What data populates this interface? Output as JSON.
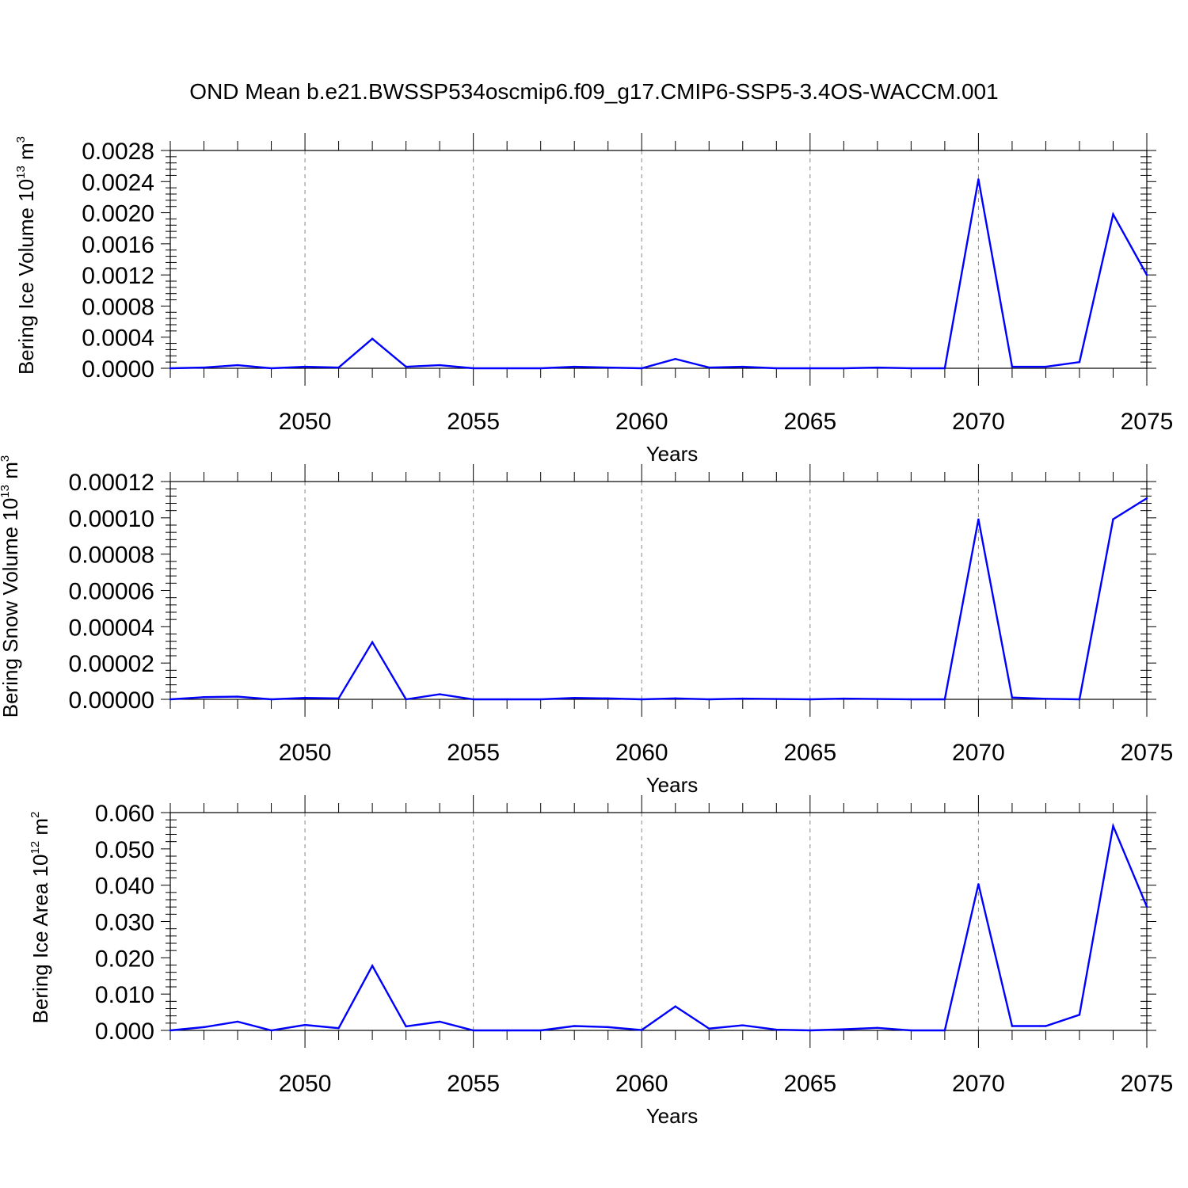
{
  "title": "OND Mean b.e21.BWSSP534oscmip6.f09_g17.CMIP6-SSP5-3.4OS-WACCM.001",
  "colors": {
    "line": "#0000ff",
    "axis": "#000000",
    "grid": "#888888"
  },
  "chart_data": [
    {
      "type": "line",
      "title": "",
      "xlabel": "Years",
      "ylabel": {
        "text": "Bering Ice Volume 10",
        "sup": "13",
        "unit": " m",
        "unit_sup": "3"
      },
      "xlim": [
        2046,
        2075
      ],
      "ylim": [
        0,
        0.0028
      ],
      "x_ticks": [
        "2050",
        "2055",
        "2060",
        "2065",
        "2070",
        "2075"
      ],
      "y_ticks": [
        "0.0000",
        "0.0004",
        "0.0008",
        "0.0012",
        "0.0016",
        "0.0020",
        "0.0024",
        "0.0028"
      ],
      "grid": "vertical dashed at major x ticks",
      "x": [
        2046,
        2047,
        2048,
        2049,
        2050,
        2051,
        2052,
        2053,
        2054,
        2055,
        2056,
        2057,
        2058,
        2059,
        2060,
        2061,
        2062,
        2063,
        2064,
        2065,
        2066,
        2067,
        2068,
        2069,
        2070,
        2071,
        2072,
        2073,
        2074,
        2075
      ],
      "values": [
        0.0,
        1e-05,
        4e-05,
        0.0,
        2e-05,
        1e-05,
        0.00038,
        2e-05,
        4e-05,
        0.0,
        0.0,
        0.0,
        2e-05,
        1e-05,
        0.0,
        0.00012,
        1e-05,
        2e-05,
        0.0,
        0.0,
        0.0,
        1e-05,
        0.0,
        0.0,
        0.00243,
        2e-05,
        2e-05,
        8e-05,
        0.00198,
        0.0012
      ]
    },
    {
      "type": "line",
      "title": "",
      "xlabel": "Years",
      "ylabel": {
        "text": "Bering Snow Volume 10",
        "sup": "13",
        "unit": " m",
        "unit_sup": "3"
      },
      "xlim": [
        2046,
        2075
      ],
      "ylim": [
        0,
        0.00012
      ],
      "x_ticks": [
        "2050",
        "2055",
        "2060",
        "2065",
        "2070",
        "2075"
      ],
      "y_ticks": [
        "0.00000",
        "0.00002",
        "0.00004",
        "0.00006",
        "0.00008",
        "0.00010",
        "0.00012"
      ],
      "grid": "vertical dashed at major x ticks",
      "x": [
        2046,
        2047,
        2048,
        2049,
        2050,
        2051,
        2052,
        2053,
        2054,
        2055,
        2056,
        2057,
        2058,
        2059,
        2060,
        2061,
        2062,
        2063,
        2064,
        2065,
        2066,
        2067,
        2068,
        2069,
        2070,
        2071,
        2072,
        2073,
        2074,
        2075
      ],
      "values": [
        0.0,
        1.2e-06,
        1.5e-06,
        0.0,
        8e-07,
        5e-07,
        3.15e-05,
        0.0,
        2.8e-06,
        0.0,
        0.0,
        0.0,
        8e-07,
        5e-07,
        0.0,
        5e-07,
        0.0,
        4e-07,
        2e-07,
        0.0,
        4e-07,
        2e-07,
        0.0,
        0.0,
        9.92e-05,
        1e-06,
        3e-07,
        0.0,
        9.92e-05,
        0.0001108
      ]
    },
    {
      "type": "line",
      "title": "",
      "xlabel": "Years",
      "ylabel": {
        "text": "Bering Ice Area 10",
        "sup": "12",
        "unit": " m",
        "unit_sup": "2"
      },
      "xlim": [
        2046,
        2075
      ],
      "ylim": [
        0,
        0.06
      ],
      "x_ticks": [
        "2050",
        "2055",
        "2060",
        "2065",
        "2070",
        "2075"
      ],
      "y_ticks": [
        "0.000",
        "0.010",
        "0.020",
        "0.030",
        "0.040",
        "0.050",
        "0.060"
      ],
      "grid": "vertical dashed at major x ticks",
      "x": [
        2046,
        2047,
        2048,
        2049,
        2050,
        2051,
        2052,
        2053,
        2054,
        2055,
        2056,
        2057,
        2058,
        2059,
        2060,
        2061,
        2062,
        2063,
        2064,
        2065,
        2066,
        2067,
        2068,
        2069,
        2070,
        2071,
        2072,
        2073,
        2074,
        2075
      ],
      "values": [
        0.0,
        0.0009,
        0.0024,
        0.0,
        0.0015,
        0.0006,
        0.0178,
        0.0011,
        0.0024,
        0.0,
        0.0,
        0.0,
        0.0012,
        0.0009,
        0.0001,
        0.0066,
        0.0005,
        0.0014,
        0.0002,
        0.0,
        0.0003,
        0.0007,
        0.0,
        0.0,
        0.0403,
        0.0012,
        0.0012,
        0.0043,
        0.0563,
        0.0341
      ]
    }
  ]
}
